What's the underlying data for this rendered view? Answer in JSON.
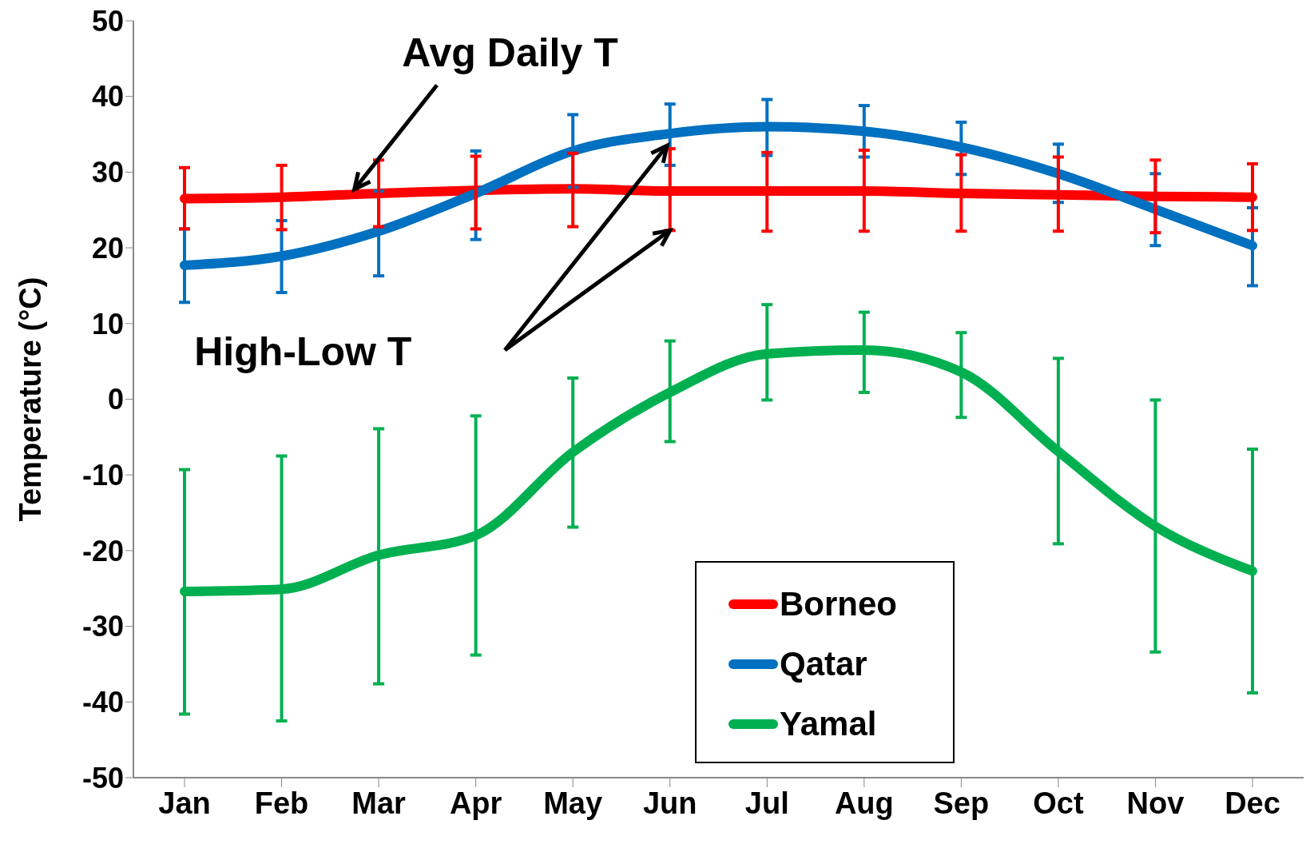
{
  "chart_data": {
    "type": "line",
    "ylabel": "Temperature (°C)",
    "categories": [
      "Jan",
      "Feb",
      "Mar",
      "Apr",
      "May",
      "Jun",
      "Jul",
      "Aug",
      "Sep",
      "Oct",
      "Nov",
      "Dec"
    ],
    "series": [
      {
        "name": "Borneo",
        "color": "#ff0000",
        "values": [
          26.5,
          26.7,
          27.2,
          27.6,
          27.8,
          27.5,
          27.5,
          27.5,
          27.2,
          27.0,
          26.8,
          26.7
        ],
        "errors": [
          [
            22.5,
            30.6
          ],
          [
            22.4,
            30.9
          ],
          [
            22.8,
            31.6
          ],
          [
            22.5,
            32.1
          ],
          [
            22.8,
            32.5
          ],
          [
            22.3,
            33.1
          ],
          [
            22.2,
            32.6
          ],
          [
            22.2,
            32.9
          ],
          [
            22.2,
            32.3
          ],
          [
            22.2,
            32.0
          ],
          [
            22.0,
            31.6
          ],
          [
            22.3,
            31.1
          ]
        ]
      },
      {
        "name": "Qatar",
        "color": "#0070c0",
        "values": [
          17.7,
          18.9,
          22.2,
          27.2,
          32.8,
          35.1,
          36.0,
          35.4,
          33.3,
          29.8,
          25.1,
          20.3
        ],
        "errors": [
          [
            12.8,
            22.5
          ],
          [
            14.1,
            23.6
          ],
          [
            16.3,
            27.5
          ],
          [
            21.1,
            32.8
          ],
          [
            28.0,
            37.6
          ],
          [
            30.9,
            39.0
          ],
          [
            32.2,
            39.6
          ],
          [
            32.0,
            38.8
          ],
          [
            29.7,
            36.6
          ],
          [
            26.0,
            33.7
          ],
          [
            20.3,
            29.8
          ],
          [
            15.0,
            25.3
          ]
        ]
      },
      {
        "name": "Yamal",
        "color": "#00b050",
        "values": [
          -25.4,
          -25.1,
          -20.6,
          -18.0,
          -7.0,
          0.9,
          6.0,
          6.5,
          3.6,
          -6.9,
          -16.8,
          -22.7
        ],
        "errors": [
          [
            -41.6,
            -9.3
          ],
          [
            -42.5,
            -7.5
          ],
          [
            -37.6,
            -3.9
          ],
          [
            -33.8,
            -2.2
          ],
          [
            -16.9,
            2.8
          ],
          [
            -5.6,
            7.7
          ],
          [
            -0.1,
            12.5
          ],
          [
            0.9,
            11.5
          ],
          [
            -2.4,
            8.8
          ],
          [
            -19.1,
            5.4
          ],
          [
            -33.4,
            -0.1
          ],
          [
            -38.8,
            -6.6
          ]
        ]
      }
    ],
    "ylim": [
      -50,
      50
    ],
    "yticks": [
      -50,
      -40,
      -30,
      -20,
      -10,
      0,
      10,
      20,
      30,
      40,
      50
    ],
    "grid": false,
    "legend": "bottom",
    "marker": "none",
    "line_style": "solid",
    "annotations": [
      {
        "text": "Avg Daily T",
        "y": 27.1
      },
      "High-Low T"
    ]
  }
}
